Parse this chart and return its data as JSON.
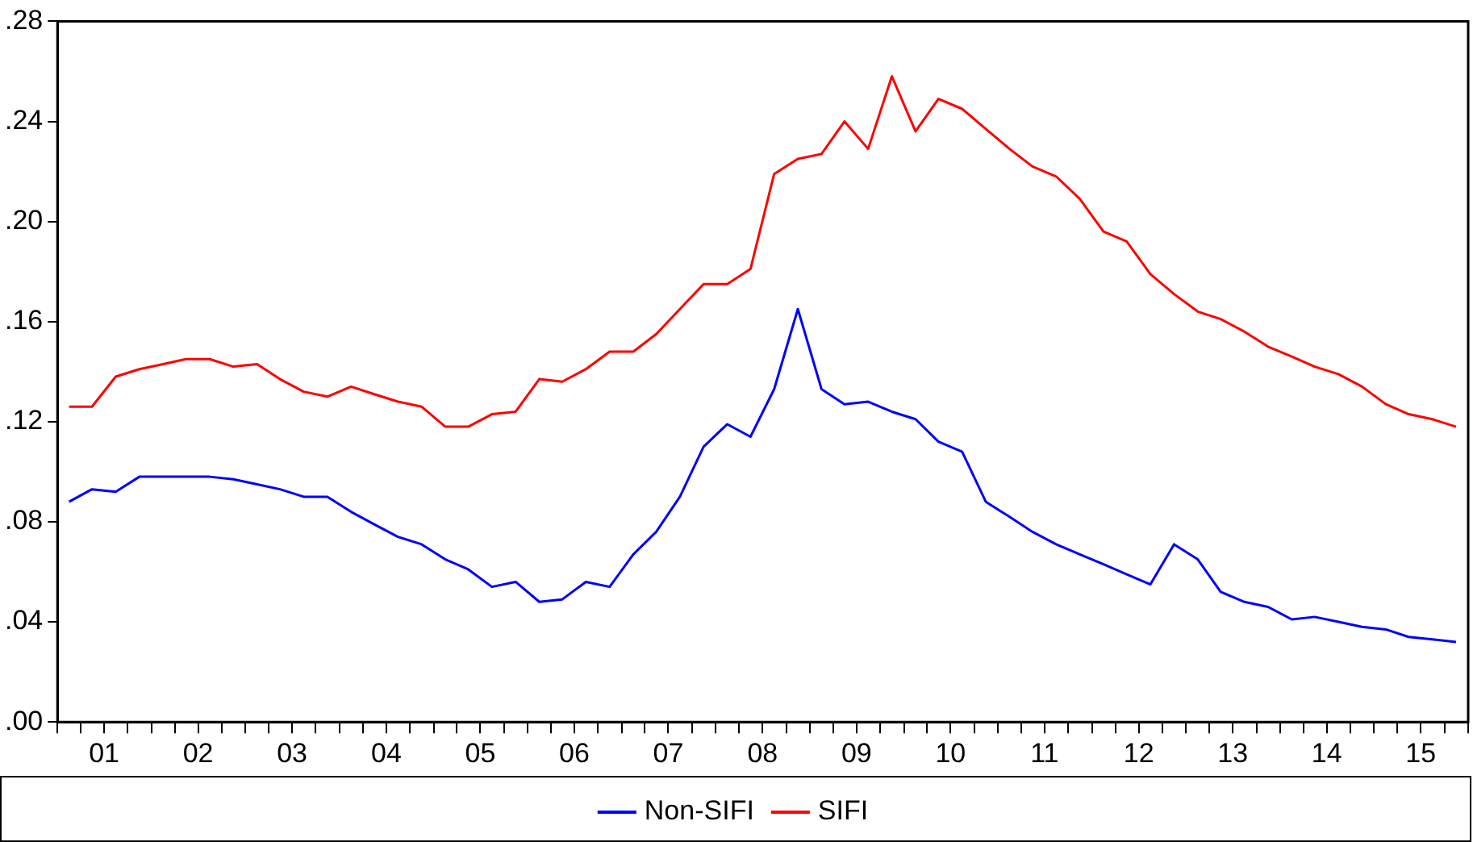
{
  "chart_data": {
    "type": "line",
    "x": [
      "2001-02-15",
      "2001-05-15",
      "2001-08-15",
      "2001-11-15",
      "2002-02-15",
      "2002-05-15",
      "2002-08-15",
      "2002-11-15",
      "2003-02-15",
      "2003-05-15",
      "2003-08-15",
      "2003-11-15",
      "2004-02-15",
      "2004-05-15",
      "2004-08-15",
      "2004-11-15",
      "2005-02-15",
      "2005-05-15",
      "2005-08-15",
      "2005-11-15",
      "2006-02-15",
      "2006-05-15",
      "2006-08-15",
      "2006-11-15",
      "2007-02-15",
      "2007-05-15",
      "2007-08-15",
      "2007-11-15",
      "2008-02-15",
      "2008-05-15",
      "2008-08-15",
      "2008-11-15",
      "2009-02-15",
      "2009-05-15",
      "2009-08-15",
      "2009-11-15",
      "2010-02-15",
      "2010-05-15",
      "2010-08-15",
      "2010-11-15",
      "2011-02-15",
      "2011-05-15",
      "2011-08-15",
      "2011-11-15",
      "2012-02-15",
      "2012-05-15",
      "2012-08-15",
      "2012-11-15",
      "2013-02-15",
      "2013-05-15",
      "2013-08-15",
      "2013-11-15",
      "2014-02-15",
      "2014-05-15",
      "2014-08-15",
      "2014-11-15",
      "2015-02-15",
      "2015-05-15",
      "2015-08-15",
      "2015-11-15"
    ],
    "series": [
      {
        "name": "Non-SIFI",
        "color": "#0000ff",
        "values": [
          0.088,
          0.093,
          0.092,
          0.098,
          0.098,
          0.098,
          0.098,
          0.097,
          0.095,
          0.093,
          0.09,
          0.09,
          0.084,
          0.079,
          0.074,
          0.071,
          0.065,
          0.061,
          0.054,
          0.056,
          0.048,
          0.049,
          0.056,
          0.054,
          0.067,
          0.076,
          0.09,
          0.11,
          0.119,
          0.114,
          0.133,
          0.165,
          0.133,
          0.127,
          0.128,
          0.124,
          0.121,
          0.112,
          0.108,
          0.088,
          0.082,
          0.076,
          0.071,
          0.067,
          0.063,
          0.059,
          0.055,
          0.071,
          0.065,
          0.052,
          0.048,
          0.046,
          0.041,
          0.042,
          0.04,
          0.038,
          0.037,
          0.034,
          0.033,
          0.032
        ]
      },
      {
        "name": "SIFI",
        "color": "#ff0000",
        "values": [
          0.126,
          0.126,
          0.138,
          0.141,
          0.143,
          0.145,
          0.145,
          0.142,
          0.143,
          0.137,
          0.132,
          0.13,
          0.134,
          0.131,
          0.128,
          0.126,
          0.118,
          0.118,
          0.123,
          0.124,
          0.137,
          0.136,
          0.141,
          0.148,
          0.148,
          0.155,
          0.165,
          0.175,
          0.175,
          0.181,
          0.219,
          0.225,
          0.227,
          0.24,
          0.229,
          0.258,
          0.236,
          0.249,
          0.245,
          0.237,
          0.229,
          0.222,
          0.218,
          0.209,
          0.196,
          0.192,
          0.179,
          0.171,
          0.164,
          0.161,
          0.156,
          0.15,
          0.146,
          0.142,
          0.139,
          0.134,
          0.127,
          0.123,
          0.121,
          0.118
        ]
      }
    ],
    "xlim": [
      "2001-01-01",
      "2016-01-01"
    ],
    "xticks": [
      {
        "value": "2001-01-01",
        "label": null
      },
      {
        "value": "2001-04-01",
        "label": null
      },
      {
        "value": "2001-07-01",
        "label": "01"
      },
      {
        "value": "2001-10-01",
        "label": null
      },
      {
        "value": "2002-01-01",
        "label": null
      },
      {
        "value": "2002-04-01",
        "label": null
      },
      {
        "value": "2002-07-01",
        "label": "02"
      },
      {
        "value": "2002-10-01",
        "label": null
      },
      {
        "value": "2003-01-01",
        "label": null
      },
      {
        "value": "2003-04-01",
        "label": null
      },
      {
        "value": "2003-07-01",
        "label": "03"
      },
      {
        "value": "2003-10-01",
        "label": null
      },
      {
        "value": "2004-01-01",
        "label": null
      },
      {
        "value": "2004-04-01",
        "label": null
      },
      {
        "value": "2004-07-01",
        "label": "04"
      },
      {
        "value": "2004-10-01",
        "label": null
      },
      {
        "value": "2005-01-01",
        "label": null
      },
      {
        "value": "2005-04-01",
        "label": null
      },
      {
        "value": "2005-07-01",
        "label": "05"
      },
      {
        "value": "2005-10-01",
        "label": null
      },
      {
        "value": "2006-01-01",
        "label": null
      },
      {
        "value": "2006-04-01",
        "label": null
      },
      {
        "value": "2006-07-01",
        "label": "06"
      },
      {
        "value": "2006-10-01",
        "label": null
      },
      {
        "value": "2007-01-01",
        "label": null
      },
      {
        "value": "2007-04-01",
        "label": null
      },
      {
        "value": "2007-07-01",
        "label": "07"
      },
      {
        "value": "2007-10-01",
        "label": null
      },
      {
        "value": "2008-01-01",
        "label": null
      },
      {
        "value": "2008-04-01",
        "label": null
      },
      {
        "value": "2008-07-01",
        "label": "08"
      },
      {
        "value": "2008-10-01",
        "label": null
      },
      {
        "value": "2009-01-01",
        "label": null
      },
      {
        "value": "2009-04-01",
        "label": null
      },
      {
        "value": "2009-07-01",
        "label": "09"
      },
      {
        "value": "2009-10-01",
        "label": null
      },
      {
        "value": "2010-01-01",
        "label": null
      },
      {
        "value": "2010-04-01",
        "label": null
      },
      {
        "value": "2010-07-01",
        "label": "10"
      },
      {
        "value": "2010-10-01",
        "label": null
      },
      {
        "value": "2011-01-01",
        "label": null
      },
      {
        "value": "2011-04-01",
        "label": null
      },
      {
        "value": "2011-07-01",
        "label": "11"
      },
      {
        "value": "2011-10-01",
        "label": null
      },
      {
        "value": "2012-01-01",
        "label": null
      },
      {
        "value": "2012-04-01",
        "label": null
      },
      {
        "value": "2012-07-01",
        "label": "12"
      },
      {
        "value": "2012-10-01",
        "label": null
      },
      {
        "value": "2013-01-01",
        "label": null
      },
      {
        "value": "2013-04-01",
        "label": null
      },
      {
        "value": "2013-07-01",
        "label": "13"
      },
      {
        "value": "2013-10-01",
        "label": null
      },
      {
        "value": "2014-01-01",
        "label": null
      },
      {
        "value": "2014-04-01",
        "label": null
      },
      {
        "value": "2014-07-01",
        "label": "14"
      },
      {
        "value": "2014-10-01",
        "label": null
      },
      {
        "value": "2015-01-01",
        "label": null
      },
      {
        "value": "2015-04-01",
        "label": null
      },
      {
        "value": "2015-07-01",
        "label": "15"
      },
      {
        "value": "2015-10-01",
        "label": null
      },
      {
        "value": "2016-01-01",
        "label": null
      }
    ],
    "ylim": [
      0,
      0.28
    ],
    "yticks": [
      {
        "value": 0,
        "label": ".00"
      },
      {
        "value": 0.04,
        "label": ".04"
      },
      {
        "value": 0.08,
        "label": ".08"
      },
      {
        "value": 0.12,
        "label": ".12"
      },
      {
        "value": 0.16,
        "label": ".16"
      },
      {
        "value": 0.2,
        "label": ".20"
      },
      {
        "value": 0.24,
        "label": ".24"
      },
      {
        "value": 0.28,
        "label": ".28"
      }
    ],
    "grid": false,
    "legend": "bottom",
    "marker": "none",
    "line_style": "solid"
  }
}
